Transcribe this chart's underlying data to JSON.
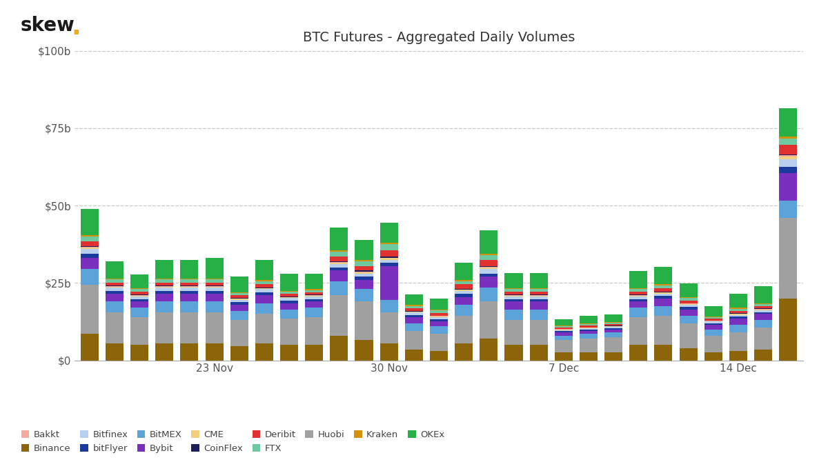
{
  "title": "BTC Futures - Aggregated Daily Volumes",
  "skew_dot_color": "#f5a623",
  "background_color": "#ffffff",
  "grid_color": "#c8c8c8",
  "colors": {
    "Bakkt": "#f7a99c",
    "Binance": "#8B6508",
    "Bitfinex": "#b8d0ee",
    "bitFlyer": "#1a3a9c",
    "BitMEX": "#5ba3d9",
    "Bybit": "#7b2fbe",
    "CME": "#f0d080",
    "CoinFlex": "#1e1e5e",
    "Deribit": "#e03030",
    "FTX": "#6ec9a0",
    "Huobi": "#a0a0a0",
    "Kraken": "#d4920a",
    "OKEx": "#26b045"
  },
  "legend_order": [
    "Bakkt",
    "Binance",
    "Bitfinex",
    "bitFlyer",
    "BitMEX",
    "Bybit",
    "CME",
    "CoinFlex",
    "Deribit",
    "FTX",
    "Huobi",
    "Kraken",
    "OKEx"
  ],
  "xtick_positions": [
    5,
    12,
    19,
    26
  ],
  "xtick_labels": [
    "23 Nov",
    "30 Nov",
    "7 Dec",
    "14 Dec"
  ],
  "ytick_labels": [
    "$0",
    "$25b",
    "$50b",
    "$75b",
    "$100b"
  ],
  "n_bars": 29,
  "bar_data": {
    "Binance": [
      8.5,
      5.5,
      5.0,
      5.5,
      5.5,
      5.5,
      4.5,
      5.5,
      5.0,
      5.0,
      8.0,
      6.5,
      5.5,
      3.5,
      3.0,
      5.5,
      7.0,
      5.0,
      5.0,
      2.5,
      2.5,
      2.5,
      5.0,
      5.0,
      4.0,
      2.5,
      3.0,
      3.5,
      20.0
    ],
    "Huobi": [
      16.0,
      10.0,
      9.0,
      10.0,
      10.0,
      10.0,
      8.5,
      9.5,
      8.5,
      9.0,
      13.0,
      12.5,
      10.0,
      6.0,
      5.5,
      9.0,
      12.0,
      8.0,
      8.0,
      4.0,
      4.5,
      5.0,
      9.0,
      9.5,
      8.0,
      5.5,
      6.0,
      7.0,
      26.0
    ],
    "OKEx": [
      8.5,
      5.5,
      4.5,
      6.0,
      6.0,
      6.5,
      5.0,
      6.5,
      5.5,
      5.0,
      7.5,
      6.5,
      6.5,
      3.5,
      3.5,
      5.5,
      7.5,
      5.0,
      5.0,
      2.0,
      2.5,
      2.5,
      5.5,
      5.5,
      4.5,
      3.5,
      4.5,
      5.5,
      9.0
    ],
    "BitMEX": [
      5.0,
      3.5,
      3.0,
      3.5,
      3.5,
      3.5,
      3.0,
      3.5,
      3.0,
      3.0,
      4.5,
      4.0,
      4.0,
      2.5,
      2.5,
      3.5,
      4.5,
      3.5,
      3.5,
      1.5,
      1.5,
      1.5,
      3.0,
      3.0,
      2.5,
      2.0,
      2.5,
      2.5,
      5.5
    ],
    "Bybit": [
      3.5,
      2.5,
      2.0,
      2.5,
      2.5,
      2.5,
      2.0,
      2.5,
      2.0,
      2.0,
      3.5,
      3.0,
      11.0,
      2.0,
      1.5,
      2.5,
      3.5,
      2.5,
      2.5,
      1.0,
      1.0,
      1.0,
      2.0,
      2.5,
      2.0,
      1.5,
      2.0,
      2.0,
      9.0
    ],
    "bitFlyer": [
      1.5,
      1.0,
      0.8,
      1.0,
      1.0,
      1.0,
      0.8,
      1.0,
      0.8,
      0.8,
      1.0,
      1.0,
      1.0,
      0.7,
      0.7,
      1.0,
      1.0,
      0.8,
      0.8,
      0.4,
      0.4,
      0.4,
      0.8,
      0.8,
      0.7,
      0.5,
      0.6,
      0.6,
      2.0
    ],
    "Bitfinex": [
      1.5,
      1.0,
      0.8,
      1.0,
      1.0,
      1.0,
      0.8,
      1.0,
      0.8,
      0.8,
      1.0,
      1.0,
      1.0,
      0.7,
      0.7,
      1.0,
      1.5,
      0.8,
      0.8,
      0.4,
      0.4,
      0.4,
      0.8,
      0.8,
      0.7,
      0.5,
      0.6,
      0.6,
      2.5
    ],
    "CME": [
      0.5,
      0.3,
      0.3,
      0.3,
      0.3,
      0.3,
      0.3,
      0.3,
      0.3,
      0.3,
      0.5,
      0.5,
      0.5,
      0.3,
      0.3,
      0.3,
      0.5,
      0.3,
      0.3,
      0.2,
      0.2,
      0.2,
      0.3,
      0.3,
      0.3,
      0.2,
      0.3,
      0.3,
      0.8
    ],
    "Bakkt": [
      0.2,
      0.1,
      0.1,
      0.1,
      0.1,
      0.1,
      0.1,
      0.1,
      0.1,
      0.1,
      0.2,
      0.2,
      0.2,
      0.1,
      0.1,
      0.1,
      0.2,
      0.1,
      0.1,
      0.1,
      0.1,
      0.1,
      0.1,
      0.1,
      0.1,
      0.1,
      0.1,
      0.1,
      0.4
    ],
    "CoinFlex": [
      0.3,
      0.2,
      0.2,
      0.2,
      0.2,
      0.2,
      0.2,
      0.2,
      0.2,
      0.2,
      0.3,
      0.3,
      0.3,
      0.2,
      0.2,
      0.2,
      0.3,
      0.2,
      0.2,
      0.1,
      0.1,
      0.1,
      0.2,
      0.2,
      0.2,
      0.1,
      0.2,
      0.2,
      0.4
    ],
    "Deribit": [
      1.5,
      1.0,
      1.0,
      1.0,
      1.0,
      1.0,
      0.8,
      1.0,
      0.8,
      0.8,
      1.5,
      1.5,
      2.0,
      0.8,
      0.8,
      1.5,
      2.0,
      1.0,
      1.0,
      0.5,
      0.5,
      0.5,
      1.0,
      1.0,
      0.8,
      0.5,
      0.7,
      0.7,
      3.0
    ],
    "FTX": [
      1.5,
      1.0,
      0.8,
      1.0,
      1.0,
      1.0,
      0.7,
      1.0,
      0.7,
      0.7,
      1.5,
      1.5,
      2.0,
      0.8,
      0.8,
      1.0,
      1.5,
      0.8,
      0.8,
      0.4,
      0.5,
      0.5,
      0.8,
      1.0,
      0.8,
      0.5,
      0.7,
      0.7,
      2.0
    ],
    "Kraken": [
      0.5,
      0.3,
      0.3,
      0.3,
      0.3,
      0.4,
      0.3,
      0.4,
      0.3,
      0.3,
      0.5,
      0.5,
      0.5,
      0.3,
      0.3,
      0.4,
      0.5,
      0.3,
      0.3,
      0.2,
      0.2,
      0.2,
      0.3,
      0.4,
      0.3,
      0.2,
      0.3,
      0.3,
      0.8
    ]
  }
}
